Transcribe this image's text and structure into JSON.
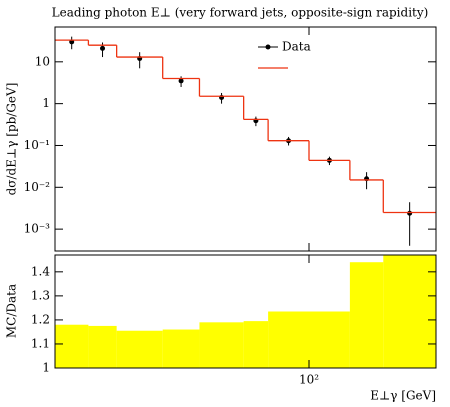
{
  "chart_data": [
    {
      "type": "histogram",
      "title": "Leading photon E⊥ (very forward jets, opposite-sign rapidity)",
      "ylabel": "dσ/dE⊥γ [pb/GeV]",
      "bins": [
        25,
        30,
        35,
        45,
        55,
        70,
        80,
        100,
        125,
        150,
        200
      ],
      "log_x": true,
      "log_y": true,
      "xlim": [
        25,
        200
      ],
      "ylim": [
        0.0003,
        68
      ],
      "yticks": [
        {
          "value": 0.001,
          "label": "10⁻³"
        },
        {
          "value": 0.01,
          "label": "10⁻²"
        },
        {
          "value": 0.1,
          "label": "10⁻¹"
        },
        1,
        10
      ],
      "legend": "upper right",
      "series": [
        {
          "name": "Data",
          "color": "#000000",
          "style": "points",
          "values": [
            30,
            21,
            12,
            3.5,
            1.4,
            0.39,
            0.13,
            0.044,
            0.016,
            0.0024
          ],
          "errors": [
            10,
            8,
            5,
            1,
            0.4,
            0.1,
            0.03,
            0.01,
            0.007,
            0.002
          ]
        },
        {
          "color": "#ee3311",
          "style": "step",
          "values": [
            33,
            25,
            13,
            4,
            1.5,
            0.42,
            0.13,
            0.044,
            0.015,
            0.0025
          ]
        }
      ]
    },
    {
      "type": "histogram",
      "ylabel": "MC/Data",
      "xlabel": "E⊥γ [GeV]",
      "bins": [
        25,
        30,
        35,
        45,
        55,
        70,
        80,
        100,
        125,
        150,
        200
      ],
      "log_x": true,
      "log_y": false,
      "xlim": [
        25,
        200
      ],
      "ylim": [
        1,
        1.47
      ],
      "xticks": [
        {
          "value": 100,
          "label": "10²"
        }
      ],
      "yticks": [
        1,
        1.1,
        1.2,
        1.3,
        1.4
      ],
      "series": [
        {
          "color": "#ffff00",
          "style": "fill",
          "values": [
            1.18,
            1.175,
            1.155,
            1.16,
            1.19,
            1.195,
            1.235,
            1.235,
            1.44,
            1.47
          ]
        }
      ]
    }
  ]
}
